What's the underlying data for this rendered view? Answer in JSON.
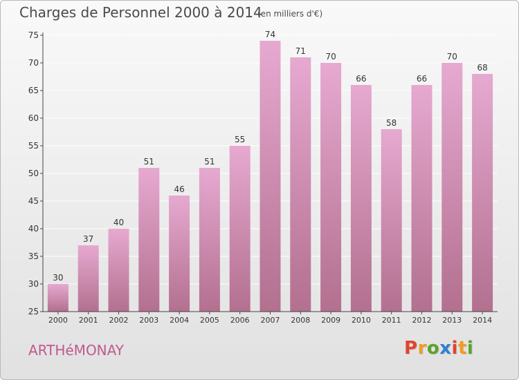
{
  "header": {
    "title": "Charges de Personnel 2000 à 2014",
    "subtitle": "(en milliers d'€)"
  },
  "footer": {
    "commune": "ARTHéMONAY",
    "logo_letters": [
      "P",
      "r",
      "o",
      "x",
      "i",
      "t",
      "i"
    ],
    "logo_colors": [
      "#e0452b",
      "#f39a1e",
      "#5aa32c",
      "#2f7fd0",
      "#e0452b",
      "#f39a1e",
      "#5aa32c"
    ]
  },
  "colors": {
    "bar_top": "#e6a9d0",
    "bar_bottom": "#b3708f",
    "axis": "#444444",
    "grid": "#ffffff"
  },
  "chart_data": {
    "type": "bar",
    "categories": [
      "2000",
      "2001",
      "2002",
      "2003",
      "2004",
      "2005",
      "2006",
      "2007",
      "2008",
      "2009",
      "2010",
      "2011",
      "2012",
      "2013",
      "2014"
    ],
    "values": [
      30,
      37,
      40,
      51,
      46,
      51,
      55,
      74,
      71,
      70,
      66,
      58,
      66,
      70,
      68
    ],
    "ylim": [
      25,
      75
    ],
    "yticks": [
      25,
      30,
      35,
      40,
      45,
      50,
      55,
      60,
      65,
      70,
      75
    ],
    "grid": true,
    "data_labels": true
  }
}
